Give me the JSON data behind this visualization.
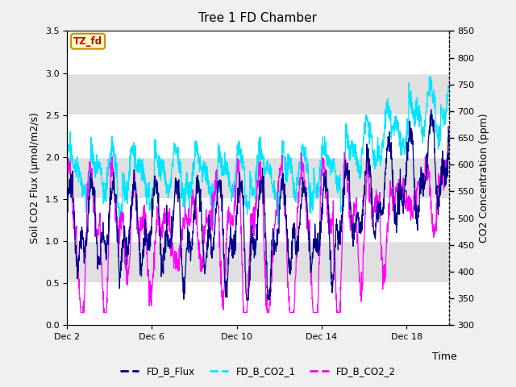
{
  "title": "Tree 1 FD Chamber",
  "xlabel": "Time",
  "ylabel_left": "Soil CO2 Flux (μmol/m2/s)",
  "ylabel_right": "CO2 Concentration (ppm)",
  "ylim_left": [
    0.0,
    3.5
  ],
  "ylim_right": [
    300,
    850
  ],
  "yticks_left": [
    0.0,
    0.5,
    1.0,
    1.5,
    2.0,
    2.5,
    3.0,
    3.5
  ],
  "yticks_right": [
    300,
    350,
    400,
    450,
    500,
    550,
    600,
    650,
    700,
    750,
    800,
    850
  ],
  "xtick_positions": [
    0,
    4,
    8,
    12,
    16
  ],
  "xtick_labels": [
    "Dec 2",
    "Dec 6",
    "Dec 10",
    "Dec 14",
    "Dec 18"
  ],
  "xlim": [
    0,
    18
  ],
  "legend_labels": [
    "FD_B_Flux",
    "FD_B_CO2_1",
    "FD_B_CO2_2"
  ],
  "colors": {
    "flux": "#00008B",
    "co2_1": "#00E5FF",
    "co2_2": "#FF00FF"
  },
  "tag_text": "TZ_fd",
  "tag_fg": "#CC0000",
  "tag_bg": "#FFFFCC",
  "tag_border": "#CC8800",
  "fig_bg": "#f0f0f0",
  "band_colors": [
    "#e8e8e8",
    "#d0d0d0"
  ],
  "band_boundaries": [
    0.0,
    0.5,
    1.0,
    1.5,
    2.0,
    2.5,
    3.0,
    3.5
  ]
}
